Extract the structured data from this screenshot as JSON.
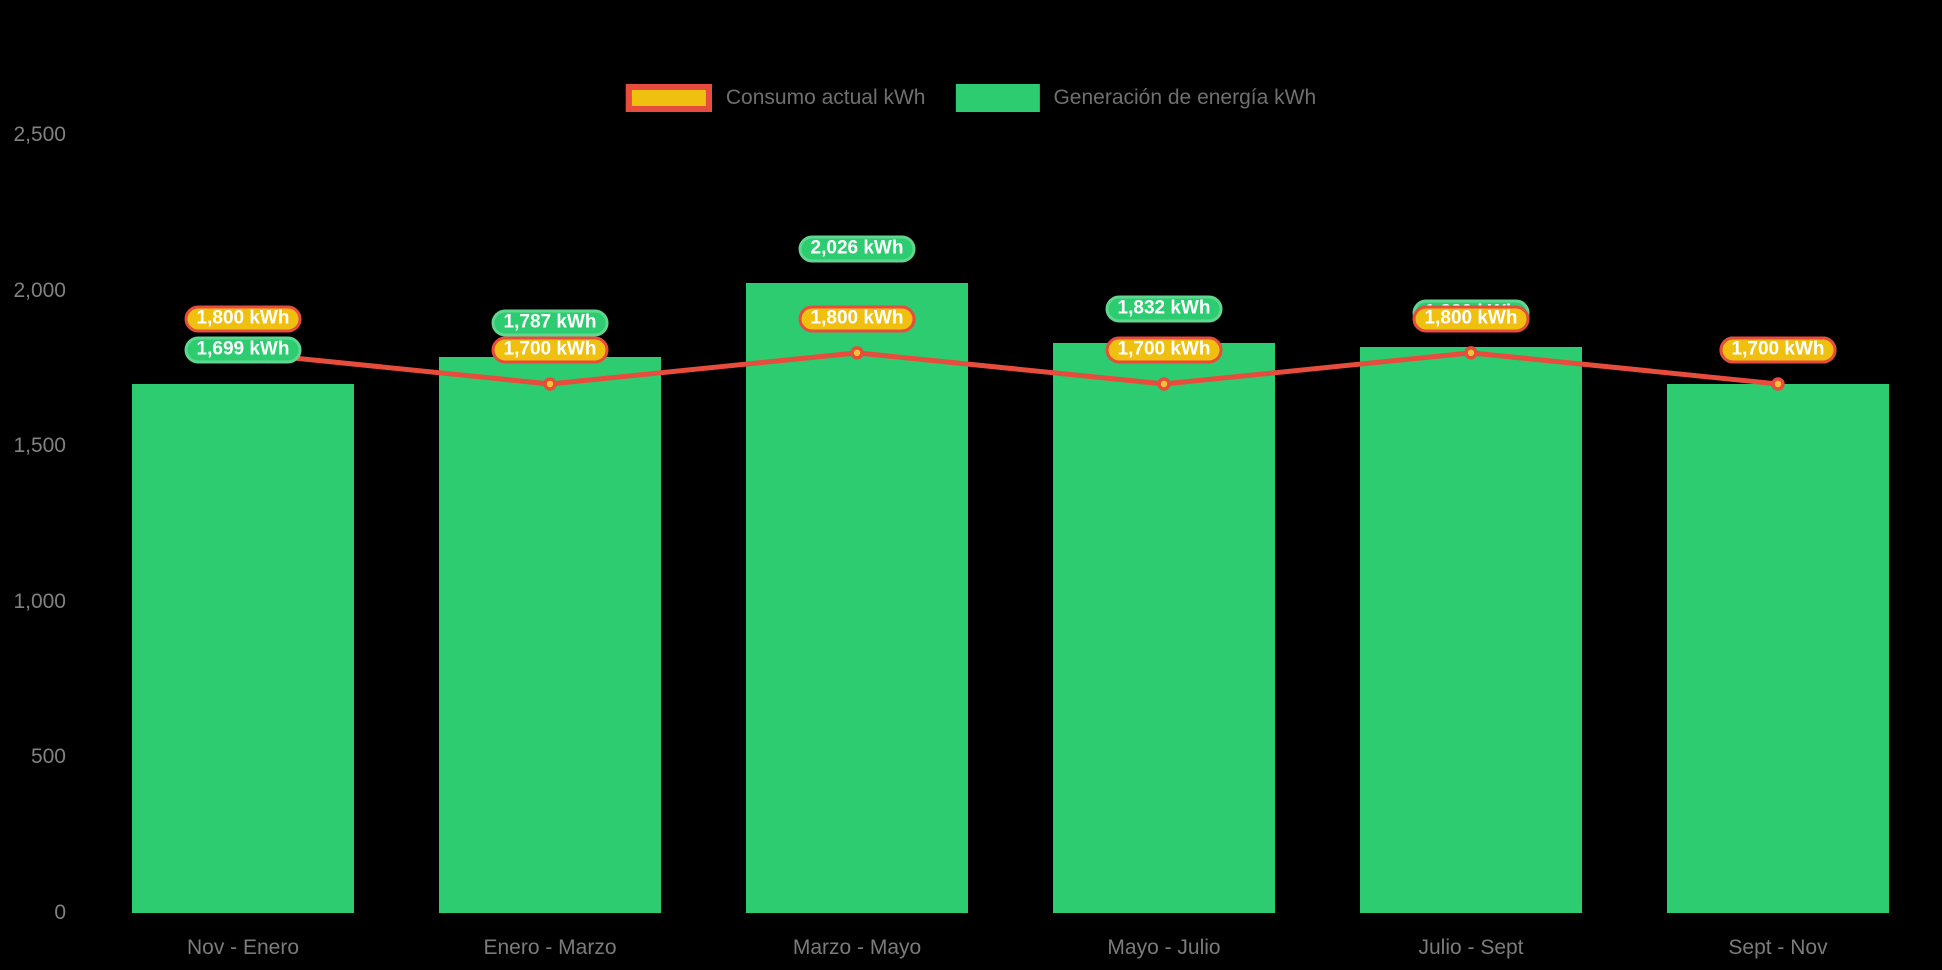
{
  "colors": {
    "background": "#000000",
    "bar_fill": "#2ECC71",
    "bar_pill_border": "#5FD78E",
    "line_stroke": "#E74C3C",
    "point_fill": "#F1C232",
    "consumo_pill_fill": "#F0C011",
    "consumo_pill_border": "#E74C3C",
    "pill_text": "#FFFFFF",
    "axis_text": "#7E7E7E",
    "legend_text": "#6F6F6F"
  },
  "legend": {
    "items": [
      {
        "label": "Consumo actual kWh",
        "swatch": "consumo-swatch"
      },
      {
        "label": "Generación de energía kWh",
        "swatch": "generacion-swatch"
      }
    ]
  },
  "chart_data": {
    "type": "bar",
    "subtype": "bar-with-line-overlay",
    "categories": [
      "Nov - Enero",
      "Enero - Marzo",
      "Marzo - Mayo",
      "Mayo - Julio",
      "Julio - Sept",
      "Sept - Nov"
    ],
    "series": [
      {
        "name": "Generación de energía kWh",
        "type": "bar",
        "color": "#2ECC71",
        "values": [
          1699,
          1787,
          2026,
          1832,
          1820,
          1700
        ],
        "labels": [
          "1,699 kWh",
          "1,787 kWh",
          "2,026 kWh",
          "1,832 kWh",
          "1,820 kWh",
          "1,700 kWh"
        ],
        "labels_hidden_behind_line_labels": [
          false,
          false,
          false,
          false,
          true,
          true
        ]
      },
      {
        "name": "Consumo actual kWh",
        "type": "line",
        "color": "#E74C3C",
        "point_color": "#F1C232",
        "values": [
          1800,
          1700,
          1800,
          1700,
          1800,
          1700
        ],
        "labels": [
          "1,800 kWh",
          "1,700 kWh",
          "1,800 kWh",
          "1,700 kWh",
          "1,800 kWh",
          "1,700 kWh"
        ]
      }
    ],
    "title": "",
    "xlabel": "",
    "ylabel": "",
    "ylim": [
      0,
      2500
    ],
    "yticks": [
      {
        "value": 0,
        "label": "0"
      },
      {
        "value": 500,
        "label": "500"
      },
      {
        "value": 1000,
        "label": "1,000"
      },
      {
        "value": 1500,
        "label": "1,500"
      },
      {
        "value": 2000,
        "label": "2,000"
      },
      {
        "value": 2500,
        "label": "2,500"
      }
    ],
    "grid": false,
    "legend_position": "top-center"
  }
}
